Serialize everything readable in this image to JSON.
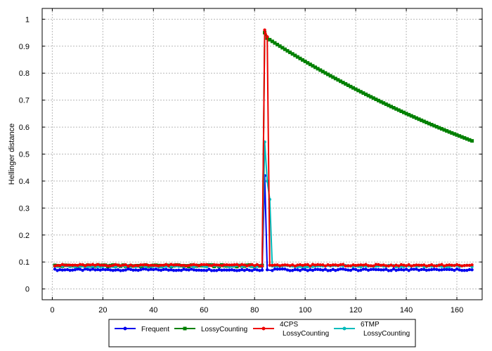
{
  "chart_data": {
    "type": "line",
    "title": "",
    "xlabel": "",
    "ylabel": "Hellinger distance",
    "xlim": [
      -4,
      170
    ],
    "ylim": [
      -0.04,
      1.04
    ],
    "xticks": [
      0,
      20,
      40,
      60,
      80,
      100,
      120,
      140,
      160
    ],
    "yticks": [
      0,
      0.1,
      0.2,
      0.3,
      0.4,
      0.5,
      0.6,
      0.7,
      0.8,
      0.9,
      1
    ],
    "grid": true,
    "legend_position": "bottom-center",
    "series": [
      {
        "name": "Frequent",
        "color": "#0000ee",
        "marker": "circle",
        "baseline": 0.071,
        "baseline_x": [
          1,
          83
        ],
        "baseline_after_x": [
          86,
          166
        ],
        "spike": [
          [
            83,
            0.071
          ],
          [
            84,
            0.42
          ],
          [
            85,
            0.071
          ]
        ]
      },
      {
        "name": "LossyCounting",
        "color": "#008000",
        "marker": "square",
        "baseline": 0.086,
        "baseline_x": [
          1,
          83
        ],
        "spike": [
          [
            83,
            0.086
          ],
          [
            84,
            0.95
          ],
          [
            85,
            0.93
          ]
        ],
        "decay_end": [
          166,
          0.549
        ]
      },
      {
        "name": "4CPS\nLossyCounting",
        "color": "#ee0000",
        "marker": "circle",
        "baseline": 0.088,
        "baseline_x": [
          1,
          83
        ],
        "baseline_after_x": [
          86,
          166
        ],
        "spike": [
          [
            83,
            0.088
          ],
          [
            84,
            0.96
          ],
          [
            85,
            0.935
          ],
          [
            86,
            0.088
          ]
        ]
      },
      {
        "name": "6TMP\nLossyCounting",
        "color": "#00bbbb",
        "marker": "circle",
        "baseline": 0.085,
        "baseline_x": [
          1,
          83
        ],
        "baseline_after_x": [
          87,
          166
        ],
        "spike": [
          [
            83,
            0.085
          ],
          [
            84,
            0.545
          ],
          [
            85,
            0.4
          ],
          [
            86,
            0.332
          ],
          [
            87,
            0.085
          ]
        ]
      }
    ]
  }
}
